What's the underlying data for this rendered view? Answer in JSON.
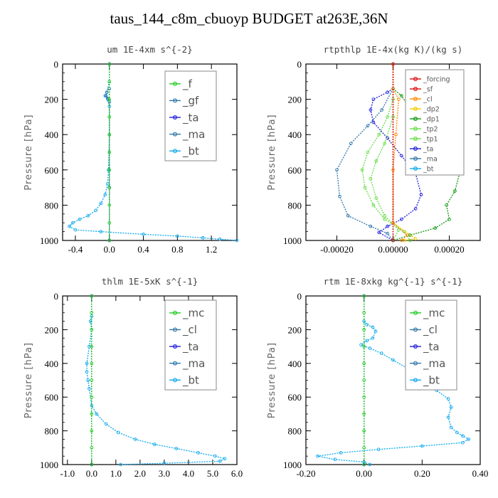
{
  "title": "taus_144_c8m_cbuoyp  BUDGET at263E,36N",
  "colors": {
    "green": "#22cc22",
    "blue": "#2222dd",
    "teal": "#3377aa",
    "cyan": "#11aaee",
    "red": "#dd1111",
    "orange": "#ff8800",
    "yellow": "#eecc00",
    "darkgreen": "#119911",
    "lightgreen": "#66dd44",
    "navy": "#2233bb"
  },
  "chart_data": [
    {
      "type": "line",
      "title": "um  1E-4xm s^{-2}",
      "ylabel": "Pressure [hPa]",
      "xlim": [
        -0.55,
        1.5
      ],
      "ylim": [
        1000,
        0
      ],
      "xticks": [
        -0.4,
        0.0,
        0.4,
        0.8,
        1.2
      ],
      "xticklabels": [
        "-0.4",
        "0.0",
        "0.4",
        "0.8",
        "1.2"
      ],
      "yticks": [
        0,
        200,
        400,
        600,
        800,
        1000
      ],
      "legend_font": 15,
      "series": [
        {
          "name": "_f",
          "color": "green",
          "points": [
            [
              0.0,
              0
            ],
            [
              0.0,
              100
            ],
            [
              0.0,
              200
            ],
            [
              0.0,
              300
            ],
            [
              0.0,
              400
            ],
            [
              0.0,
              500
            ],
            [
              0.0,
              600
            ],
            [
              0.0,
              700
            ],
            [
              0.0,
              800
            ],
            [
              0.0,
              900
            ],
            [
              0.0,
              1000
            ]
          ]
        },
        {
          "name": "_gf",
          "color": "teal",
          "points": [
            [
              0.0,
              0
            ],
            [
              0.0,
              140
            ],
            [
              -0.03,
              160
            ],
            [
              -0.04,
              180
            ],
            [
              -0.02,
              195
            ],
            [
              0.0,
              215
            ],
            [
              0.0,
              400
            ],
            [
              0.0,
              700
            ],
            [
              0.0,
              1000
            ]
          ]
        },
        {
          "name": "_ta",
          "color": "blue",
          "points": [
            [
              0.0,
              0
            ],
            [
              0.0,
              700
            ],
            [
              0.0,
              1000
            ]
          ]
        },
        {
          "name": "_ma",
          "color": "teal",
          "points": [
            [
              0.0,
              0
            ],
            [
              0.0,
              700
            ],
            [
              0.0,
              1000
            ]
          ]
        },
        {
          "name": "_bt",
          "color": "cyan",
          "points": [
            [
              0.0,
              0
            ],
            [
              0.0,
              100
            ],
            [
              -0.03,
              160
            ],
            [
              -0.05,
              180
            ],
            [
              -0.02,
              200
            ],
            [
              0.0,
              240
            ],
            [
              0.0,
              400
            ],
            [
              -0.01,
              600
            ],
            [
              -0.02,
              680
            ],
            [
              -0.05,
              740
            ],
            [
              -0.1,
              790
            ],
            [
              -0.16,
              830
            ],
            [
              -0.25,
              860
            ],
            [
              -0.35,
              880
            ],
            [
              -0.43,
              900
            ],
            [
              -0.47,
              920
            ],
            [
              -0.4,
              940
            ],
            [
              -0.1,
              950
            ],
            [
              0.4,
              965
            ],
            [
              0.8,
              975
            ],
            [
              1.1,
              985
            ],
            [
              1.3,
              993
            ],
            [
              1.5,
              1000
            ]
          ]
        }
      ]
    },
    {
      "type": "line",
      "title": "rtpthlp  1E-4x(kg K)/(kg s)",
      "ylabel": "Pressure [hPa]",
      "xlim": [
        -0.00031,
        0.00031
      ],
      "ylim": [
        1000,
        0
      ],
      "xticks": [
        -0.0002,
        0.0,
        0.0002
      ],
      "xticklabels": [
        "-0.00020",
        "0.00000",
        "0.00020"
      ],
      "yticks": [
        0,
        200,
        400,
        600,
        800,
        1000
      ],
      "legend_font": 9.5,
      "series": [
        {
          "name": "_forcing",
          "color": "red",
          "points": [
            [
              0.0,
              0
            ],
            [
              0.0,
              1000
            ]
          ]
        },
        {
          "name": "_sf",
          "color": "red",
          "points": [
            [
              0.0,
              0
            ],
            [
              0.0,
              1000
            ]
          ]
        },
        {
          "name": "_cl",
          "color": "orange",
          "points": [
            [
              0.0,
              0
            ],
            [
              0.0,
              140
            ],
            [
              2e-05,
              200
            ],
            [
              1e-05,
              400
            ],
            [
              0.0,
              600
            ],
            [
              0.0,
              900
            ],
            [
              5e-05,
              970
            ],
            [
              3e-05,
              1000
            ]
          ]
        },
        {
          "name": "_dp2",
          "color": "yellow",
          "points": [
            [
              0.0,
              0
            ],
            [
              0.0,
              900
            ],
            [
              8e-05,
              990
            ],
            [
              4e-05,
              1000
            ]
          ]
        },
        {
          "name": "_dp1",
          "color": "darkgreen",
          "points": [
            [
              0.0,
              0
            ],
            [
              0.0,
              140
            ],
            [
              3e-05,
              180
            ],
            [
              8e-05,
              300
            ],
            [
              0.00014,
              400
            ],
            [
              0.0002,
              500
            ],
            [
              0.00024,
              600
            ],
            [
              0.00022,
              720
            ],
            [
              0.00019,
              800
            ],
            [
              0.0002,
              880
            ],
            [
              0.00015,
              930
            ],
            [
              6e-05,
              970
            ],
            [
              0.0,
              1000
            ]
          ]
        },
        {
          "name": "_tp2",
          "color": "lightgreen",
          "points": [
            [
              0.0,
              0
            ],
            [
              0.0,
              140
            ],
            [
              0.0,
              200
            ],
            [
              -2e-05,
              300
            ],
            [
              -5e-05,
              400
            ],
            [
              -9e-05,
              500
            ],
            [
              -0.00011,
              600
            ],
            [
              -0.0001,
              700
            ],
            [
              -7e-05,
              800
            ],
            [
              -3e-05,
              880
            ],
            [
              4e-05,
              950
            ],
            [
              6e-05,
              1000
            ]
          ]
        },
        {
          "name": "_tp1",
          "color": "lightgreen",
          "points": [
            [
              0.0,
              0
            ],
            [
              0.0,
              140
            ],
            [
              0.0,
              300
            ],
            [
              -3e-05,
              450
            ],
            [
              -6e-05,
              550
            ],
            [
              -8e-05,
              650
            ],
            [
              -6e-05,
              760
            ],
            [
              -3e-05,
              860
            ],
            [
              2e-05,
              940
            ],
            [
              0.0,
              1000
            ]
          ]
        },
        {
          "name": "_ta",
          "color": "blue",
          "points": [
            [
              0.0,
              0
            ],
            [
              0.0,
              140
            ],
            [
              -2e-05,
              160
            ],
            [
              -7e-05,
              200
            ],
            [
              -8e-05,
              260
            ],
            [
              -7e-05,
              330
            ],
            [
              -2e-05,
              420
            ],
            [
              3e-05,
              520
            ],
            [
              8e-05,
              620
            ],
            [
              0.0001,
              740
            ],
            [
              8e-05,
              820
            ],
            [
              3e-05,
              880
            ],
            [
              -2e-05,
              920
            ],
            [
              -5e-05,
              955
            ],
            [
              0.0,
              1000
            ]
          ]
        },
        {
          "name": "_ma",
          "color": "teal",
          "points": [
            [
              0.0,
              0
            ],
            [
              0.0,
              140
            ],
            [
              -4e-05,
              260
            ],
            [
              -9e-05,
              350
            ],
            [
              -0.00015,
              450
            ],
            [
              -0.0002,
              600
            ],
            [
              -0.00019,
              750
            ],
            [
              -0.00016,
              860
            ],
            [
              -8e-05,
              920
            ],
            [
              -2e-05,
              960
            ],
            [
              0.0,
              1000
            ]
          ]
        },
        {
          "name": "_bt",
          "color": "cyan",
          "points": [
            [
              0.0,
              0
            ],
            [
              0.0,
              1000
            ]
          ]
        }
      ]
    },
    {
      "type": "line",
      "title": "thlm  1E-5xK s^{-1}",
      "ylabel": "Pressure [hPa]",
      "xlim": [
        -1.2,
        6.0
      ],
      "ylim": [
        1000,
        0
      ],
      "xticks": [
        -1.0,
        0.0,
        1.0,
        2.0,
        3.0,
        4.0,
        5.0,
        6.0
      ],
      "xticklabels": [
        "-1.0",
        "0.0",
        "1.0",
        "2.0",
        "3.0",
        "4.0",
        "5.0",
        "6.0"
      ],
      "yticks": [
        0,
        200,
        400,
        600,
        800,
        1000
      ],
      "legend_font": 15,
      "series": [
        {
          "name": "_mc",
          "color": "green",
          "points": [
            [
              0.0,
              0
            ],
            [
              0.0,
              100
            ],
            [
              0.0,
              200
            ],
            [
              0.0,
              300
            ],
            [
              0.0,
              400
            ],
            [
              0.0,
              500
            ],
            [
              0.0,
              600
            ],
            [
              0.0,
              700
            ],
            [
              0.0,
              800
            ],
            [
              0.0,
              900
            ],
            [
              0.0,
              1000
            ]
          ]
        },
        {
          "name": "_cl",
          "color": "teal",
          "points": [
            [
              0.0,
              0
            ],
            [
              0.0,
              1000
            ]
          ]
        },
        {
          "name": "_ta",
          "color": "blue",
          "points": [
            [
              0.0,
              0
            ],
            [
              0.0,
              1000
            ]
          ]
        },
        {
          "name": "_ma",
          "color": "teal",
          "points": [
            [
              0.0,
              0
            ],
            [
              0.0,
              1000
            ]
          ]
        },
        {
          "name": "_bt",
          "color": "cyan",
          "points": [
            [
              0.0,
              0
            ],
            [
              0.0,
              120
            ],
            [
              -0.05,
              150
            ],
            [
              0.0,
              200
            ],
            [
              -0.1,
              300
            ],
            [
              -0.2,
              400
            ],
            [
              -0.2,
              450
            ],
            [
              -0.15,
              500
            ],
            [
              -0.1,
              550
            ],
            [
              0.0,
              650
            ],
            [
              0.2,
              700
            ],
            [
              0.6,
              760
            ],
            [
              1.1,
              810
            ],
            [
              1.8,
              850
            ],
            [
              2.6,
              880
            ],
            [
              3.5,
              905
            ],
            [
              4.4,
              930
            ],
            [
              5.1,
              950
            ],
            [
              5.5,
              965
            ],
            [
              5.3,
              980
            ],
            [
              3.0,
              992
            ],
            [
              1.2,
              1000
            ]
          ]
        }
      ]
    },
    {
      "type": "line",
      "title": "rtm  1E-8xkg kg^{-1} s^{-1}",
      "ylabel": "Pressure [hPa]",
      "xlim": [
        -0.2,
        0.4
      ],
      "ylim": [
        1000,
        0
      ],
      "xticks": [
        -0.2,
        0.0,
        0.2,
        0.4
      ],
      "xticklabels": [
        "-0.20",
        "0.00",
        "0.20",
        "0.40"
      ],
      "yticks": [
        0,
        200,
        400,
        600,
        800,
        1000
      ],
      "legend_font": 15,
      "series": [
        {
          "name": "_mc",
          "color": "green",
          "points": [
            [
              0.0,
              0
            ],
            [
              0.0,
              100
            ],
            [
              0.0,
              200
            ],
            [
              0.0,
              300
            ],
            [
              0.0,
              400
            ],
            [
              0.0,
              500
            ],
            [
              0.0,
              600
            ],
            [
              0.0,
              700
            ],
            [
              0.0,
              800
            ],
            [
              0.0,
              900
            ],
            [
              0.0,
              1000
            ]
          ]
        },
        {
          "name": "_cl",
          "color": "teal",
          "points": [
            [
              0.0,
              0
            ],
            [
              0.0,
              1000
            ]
          ]
        },
        {
          "name": "_ta",
          "color": "blue",
          "points": [
            [
              0.0,
              0
            ],
            [
              0.0,
              1000
            ]
          ]
        },
        {
          "name": "_ma",
          "color": "teal",
          "points": [
            [
              0.0,
              0
            ],
            [
              0.0,
              1000
            ]
          ]
        },
        {
          "name": "_bt",
          "color": "cyan",
          "points": [
            [
              0.0,
              0
            ],
            [
              0.0,
              150
            ],
            [
              0.01,
              170
            ],
            [
              0.03,
              185
            ],
            [
              0.04,
              210
            ],
            [
              0.03,
              250
            ],
            [
              0.01,
              265
            ],
            [
              -0.01,
              290
            ],
            [
              0.02,
              310
            ],
            [
              0.06,
              340
            ],
            [
              0.1,
              380
            ],
            [
              0.16,
              440
            ],
            [
              0.21,
              480
            ],
            [
              0.23,
              520
            ],
            [
              0.25,
              560
            ],
            [
              0.29,
              610
            ],
            [
              0.3,
              660
            ],
            [
              0.29,
              720
            ],
            [
              0.3,
              780
            ],
            [
              0.32,
              810
            ],
            [
              0.34,
              830
            ],
            [
              0.36,
              850
            ],
            [
              0.34,
              870
            ],
            [
              0.2,
              890
            ],
            [
              0.05,
              910
            ],
            [
              -0.08,
              930
            ],
            [
              -0.16,
              950
            ],
            [
              -0.1,
              970
            ],
            [
              0.0,
              985
            ],
            [
              0.02,
              1000
            ]
          ]
        }
      ]
    }
  ]
}
